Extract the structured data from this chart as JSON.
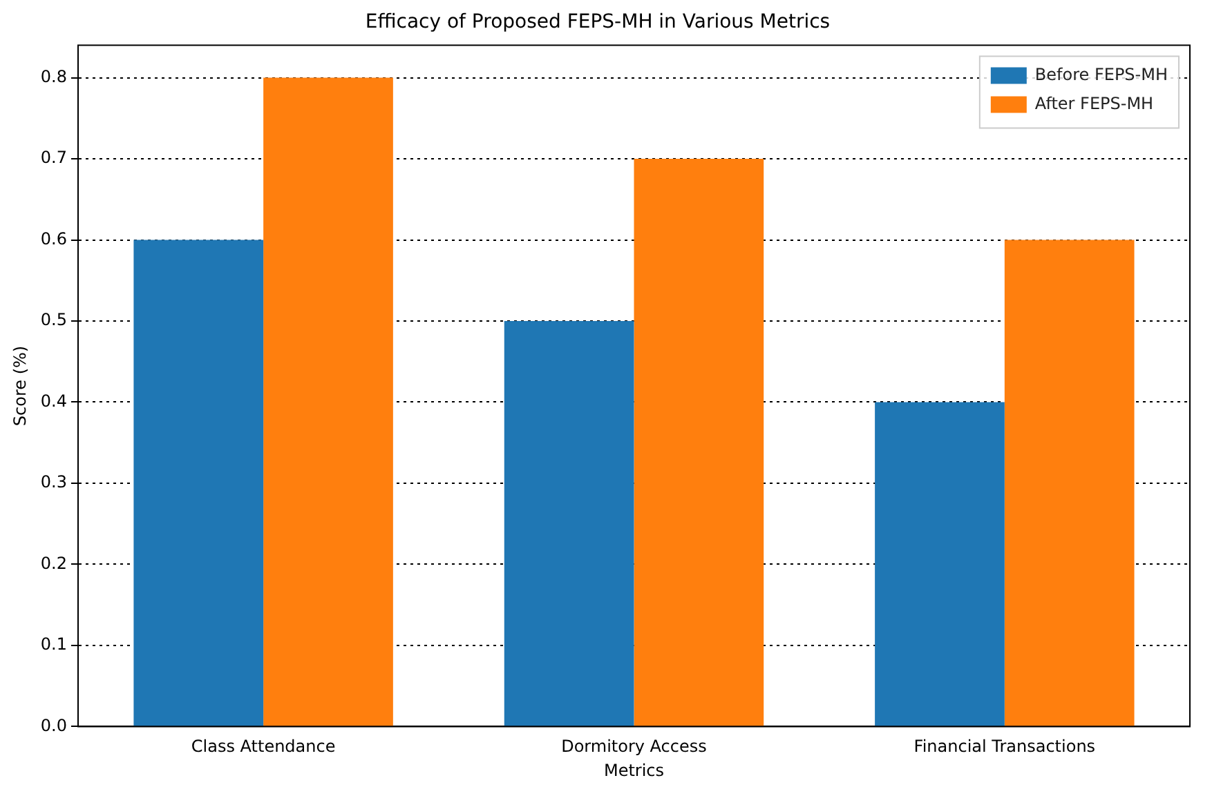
{
  "chart_data": {
    "type": "bar",
    "title": "Efficacy of Proposed FEPS-MH in Various Metrics",
    "xlabel": "Metrics",
    "ylabel": "Score (%)",
    "categories": [
      "Class Attendance",
      "Dormitory Access",
      "Financial Transactions"
    ],
    "series": [
      {
        "name": "Before FEPS-MH",
        "color": "#1f77b4",
        "values": [
          0.6,
          0.5,
          0.4
        ]
      },
      {
        "name": "After FEPS-MH",
        "color": "#ff7f0e",
        "values": [
          0.8,
          0.7,
          0.6
        ]
      }
    ],
    "ylim": [
      0,
      0.84
    ],
    "yticks": [
      {
        "value": 0,
        "label": "0.0"
      },
      0.1,
      0.2,
      0.3,
      0.4,
      0.5,
      0.6,
      0.7,
      0.8
    ],
    "grid": "y",
    "line_style": "dotted",
    "legend": "top right"
  }
}
